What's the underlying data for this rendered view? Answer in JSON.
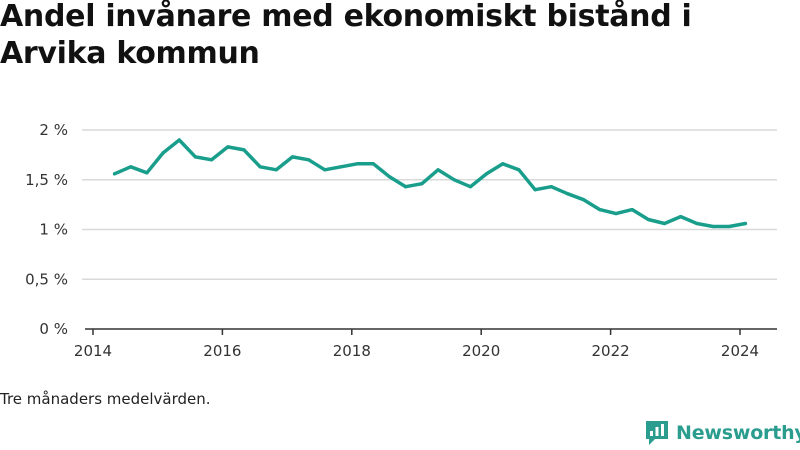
{
  "title": "Andel invånare med ekonomiskt bistånd i Arvika kommun",
  "note": "Tre månaders medelvärden.",
  "brand": {
    "name": "Newsworthy",
    "color": "#2a9d8f"
  },
  "colors": {
    "line": "#1a9e8c",
    "grid": "#d9d9d9",
    "axis": "#333333"
  },
  "chart_data": {
    "type": "line",
    "title": "Andel invånare med ekonomiskt bistånd i Arvika kommun",
    "xlabel": "",
    "ylabel": "",
    "x_ticks": [
      "2014",
      "2016",
      "2018",
      "2020",
      "2022",
      "2024"
    ],
    "y_ticks": [
      "0 %",
      "0,5 %",
      "1 %",
      "1,5 %",
      "2 %"
    ],
    "y_tick_values": [
      0,
      0.5,
      1,
      1.5,
      2
    ],
    "xlim": [
      2014,
      2024.75
    ],
    "ylim": [
      0,
      2
    ],
    "grid": true,
    "unit": "%",
    "series": [
      {
        "x": [
          "2014-05",
          "2014-08",
          "2014-11",
          "2015-02",
          "2015-05",
          "2015-08",
          "2015-11",
          "2016-02",
          "2016-05",
          "2016-08",
          "2016-11",
          "2017-02",
          "2017-05",
          "2017-08",
          "2017-11",
          "2018-02",
          "2018-05",
          "2018-08",
          "2018-11",
          "2019-02",
          "2019-05",
          "2019-08",
          "2019-11",
          "2020-02",
          "2020-05",
          "2020-08",
          "2020-11",
          "2021-02",
          "2021-05",
          "2021-08",
          "2021-11",
          "2022-02",
          "2022-05",
          "2022-08",
          "2022-11",
          "2023-02",
          "2023-05",
          "2023-08",
          "2023-11",
          "2024-02"
        ],
        "values": [
          1.56,
          1.63,
          1.57,
          1.77,
          1.9,
          1.73,
          1.7,
          1.83,
          1.8,
          1.63,
          1.6,
          1.73,
          1.7,
          1.6,
          1.63,
          1.66,
          1.66,
          1.53,
          1.43,
          1.46,
          1.6,
          1.5,
          1.43,
          1.56,
          1.66,
          1.6,
          1.4,
          1.43,
          1.36,
          1.3,
          1.2,
          1.16,
          1.2,
          1.1,
          1.06,
          1.13,
          1.06,
          1.03,
          1.03,
          1.06
        ]
      }
    ]
  }
}
